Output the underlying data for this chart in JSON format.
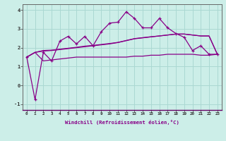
{
  "xlabel": "Windchill (Refroidissement éolien,°C)",
  "background_color": "#cceee8",
  "grid_color": "#aad8d2",
  "line_color": "#880088",
  "xlim": [
    -0.5,
    23.5
  ],
  "ylim": [
    -1.3,
    4.3
  ],
  "xticks": [
    0,
    1,
    2,
    3,
    4,
    5,
    6,
    7,
    8,
    9,
    10,
    11,
    12,
    13,
    14,
    15,
    16,
    17,
    18,
    19,
    20,
    21,
    22,
    23
  ],
  "yticks": [
    -1,
    0,
    1,
    2,
    3,
    4
  ],
  "line1_x": [
    0,
    1,
    2,
    3,
    4,
    5,
    6,
    7,
    8,
    9,
    10,
    11,
    12,
    13,
    14,
    15,
    16,
    17,
    18,
    19,
    20,
    21,
    22,
    23
  ],
  "line1_y": [
    1.5,
    -0.75,
    1.75,
    1.3,
    2.35,
    2.6,
    2.2,
    2.6,
    2.1,
    2.85,
    3.3,
    3.35,
    3.9,
    3.55,
    3.05,
    3.05,
    3.55,
    3.05,
    2.75,
    2.55,
    1.85,
    2.1,
    1.65,
    1.65
  ],
  "line2_x": [
    0,
    1,
    2,
    3,
    4,
    5,
    6,
    7,
    8,
    9,
    10,
    11,
    12,
    13,
    14,
    15,
    16,
    17,
    18,
    19,
    20,
    21,
    22,
    23
  ],
  "line2_y": [
    1.5,
    1.75,
    1.85,
    1.87,
    1.92,
    1.97,
    2.02,
    2.08,
    2.12,
    2.17,
    2.22,
    2.28,
    2.38,
    2.48,
    2.53,
    2.58,
    2.62,
    2.67,
    2.72,
    2.72,
    2.67,
    2.62,
    2.62,
    1.65
  ],
  "line3_x": [
    0,
    1,
    2,
    3,
    4,
    5,
    6,
    7,
    8,
    9,
    10,
    11,
    12,
    13,
    14,
    15,
    16,
    17,
    18,
    19,
    20,
    21,
    22,
    23
  ],
  "line3_y": [
    1.5,
    1.75,
    1.82,
    1.85,
    1.9,
    1.95,
    2.0,
    2.05,
    2.1,
    2.15,
    2.2,
    2.27,
    2.37,
    2.47,
    2.52,
    2.57,
    2.62,
    2.67,
    2.72,
    2.72,
    2.67,
    2.62,
    2.62,
    1.65
  ],
  "line4_x": [
    0,
    1,
    2,
    3,
    4,
    5,
    6,
    7,
    8,
    9,
    10,
    11,
    12,
    13,
    14,
    15,
    16,
    17,
    18,
    19,
    20,
    21,
    22,
    23
  ],
  "line4_y": [
    1.5,
    1.75,
    1.3,
    1.35,
    1.4,
    1.45,
    1.5,
    1.5,
    1.5,
    1.5,
    1.5,
    1.5,
    1.5,
    1.55,
    1.55,
    1.6,
    1.6,
    1.65,
    1.65,
    1.65,
    1.65,
    1.6,
    1.6,
    1.65
  ]
}
